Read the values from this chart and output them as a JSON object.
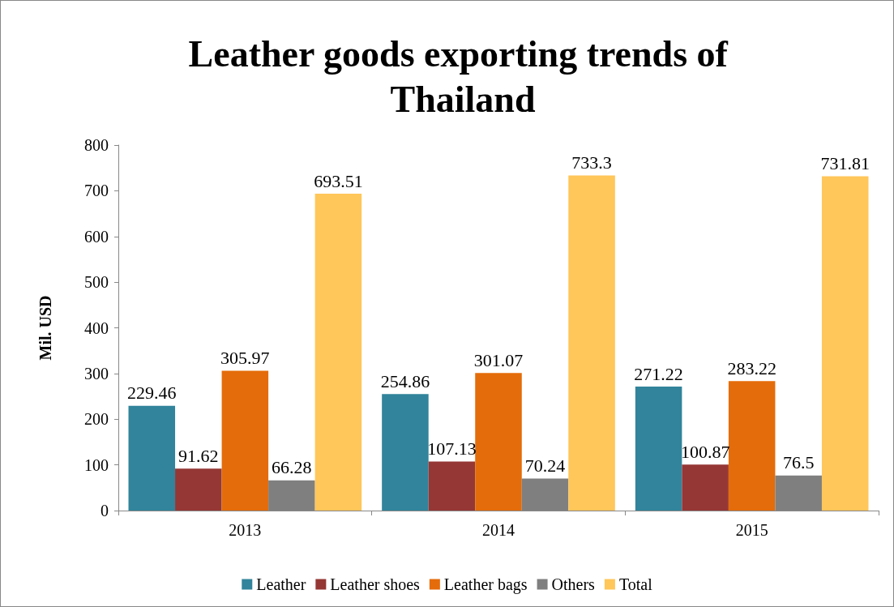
{
  "chart_data": {
    "type": "bar",
    "title": "Leather goods exporting trends of Thailand",
    "ylabel": "Mil. USD",
    "categories": [
      "2013",
      "2014",
      "2015"
    ],
    "series": [
      {
        "name": "Leather",
        "color": "#31849b",
        "values": [
          229.46,
          254.86,
          271.22
        ]
      },
      {
        "name": "Leather shoes",
        "color": "#953735",
        "values": [
          91.62,
          107.13,
          100.87
        ]
      },
      {
        "name": "Leather bags",
        "color": "#e46c0a",
        "values": [
          305.97,
          301.07,
          283.22
        ]
      },
      {
        "name": "Others",
        "color": "#7f7f7f",
        "values": [
          66.28,
          70.24,
          76.5
        ]
      },
      {
        "name": "Total",
        "color": "#ffc65a",
        "values": [
          693.51,
          733.3,
          731.81
        ]
      }
    ],
    "ylim": [
      0,
      800
    ],
    "yticks": [
      0,
      100,
      200,
      300,
      400,
      500,
      600,
      700,
      800
    ],
    "grid": false,
    "legend": "bottom",
    "data_labels": true
  }
}
